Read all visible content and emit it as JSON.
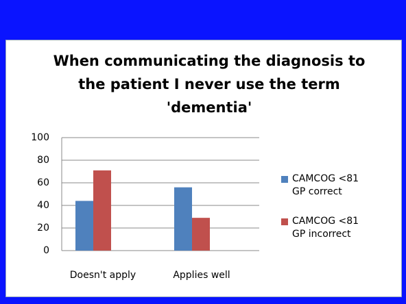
{
  "chart_data": {
    "type": "bar",
    "title": "When communicating the diagnosis to the patient I never use the term 'dementia'",
    "categories": [
      "Doesn't apply",
      "Applies well"
    ],
    "series": [
      {
        "name": "CAMCOG <81 GP correct",
        "color": "#4f81bd",
        "values": [
          44,
          56
        ]
      },
      {
        "name": "CAMCOG <81 GP incorrect",
        "color": "#c0504d",
        "values": [
          71,
          29
        ]
      }
    ],
    "ylim": [
      0,
      100
    ],
    "yticks": [
      0,
      20,
      40,
      60,
      80,
      100
    ],
    "grid": true,
    "legend": "right"
  }
}
